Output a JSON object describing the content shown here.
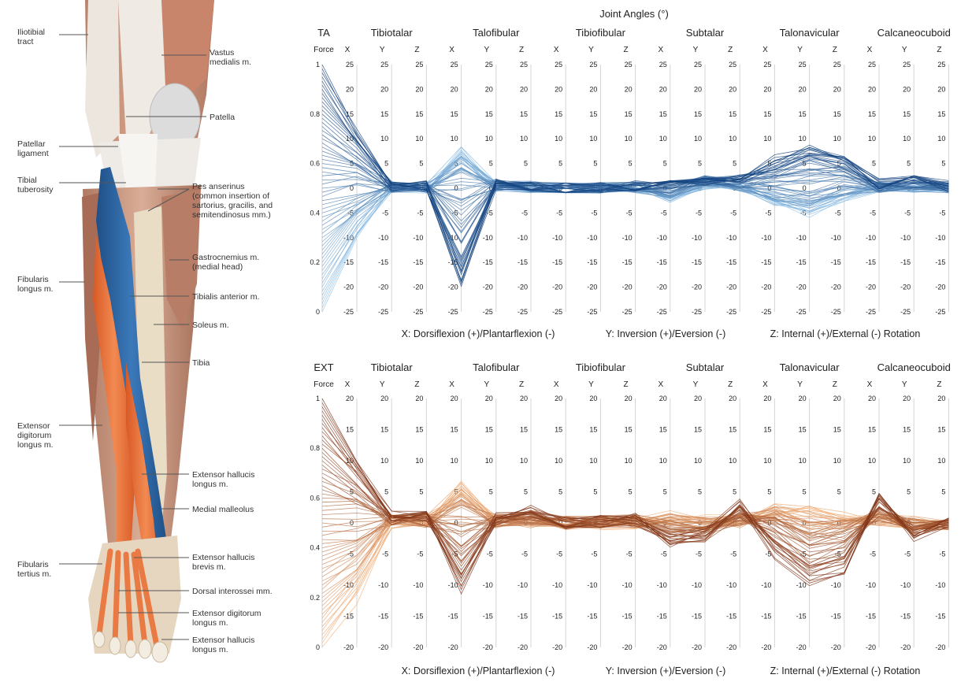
{
  "anatomy": {
    "labels": [
      {
        "lines": [
          "Iliotibial",
          "tract"
        ]
      },
      {
        "lines": [
          "Vastus",
          "medialis m."
        ]
      },
      {
        "lines": [
          "Patella"
        ]
      },
      {
        "lines": [
          "Patellar",
          "ligament"
        ]
      },
      {
        "lines": [
          "Tibial",
          "tuberosity"
        ]
      },
      {
        "lines": [
          "Pes anserinus",
          "(common insertion of",
          "sartorius, gracilis, and",
          "semitendinosus mm.)"
        ]
      },
      {
        "lines": [
          "Gastrocnemius m.",
          "(medial head)"
        ]
      },
      {
        "lines": [
          "Fibularis",
          "longus m."
        ]
      },
      {
        "lines": [
          "Tibialis anterior m."
        ]
      },
      {
        "lines": [
          "Soleus m."
        ]
      },
      {
        "lines": [
          "Tibia"
        ]
      },
      {
        "lines": [
          "Extensor",
          "digitorum",
          "longus m."
        ]
      },
      {
        "lines": [
          "Extensor hallucis",
          "longus m."
        ]
      },
      {
        "lines": [
          "Medial malleolus"
        ]
      },
      {
        "lines": [
          "Extensor hallucis",
          "brevis m."
        ]
      },
      {
        "lines": [
          "Fibularis",
          "tertius m."
        ]
      },
      {
        "lines": [
          "Dorsal interossei mm."
        ]
      },
      {
        "lines": [
          "Extensor digitorum",
          "longus m."
        ]
      },
      {
        "lines": [
          "Extensor hallucis",
          "longus m."
        ]
      }
    ],
    "colors": {
      "tibialis_anterior": "#2f6aa8",
      "extensor": "#e8703a",
      "bone": "#e9ddc6",
      "muscle": "#c98c72"
    }
  },
  "chart_data": {
    "type": "parallel-coordinates",
    "title": "Joint Angles (°)",
    "xlabel_parts": [
      "X: Dorsiflexion (+)/Plantarflexion (-)",
      "Y: Inversion (+)/Eversion (-)",
      "Z: Internal (+)/External (-) Rotation"
    ],
    "force_axis": {
      "label": "Force",
      "ticks": [
        "1",
        "0.8",
        "0.6",
        "0.4",
        "0.2",
        "0"
      ]
    },
    "joints": [
      "Tibiotalar",
      "Talofibular",
      "Tibiofibular",
      "Subtalar",
      "Talonavicular",
      "Calcaneocuboid"
    ],
    "axis_labels": [
      "X",
      "Y",
      "Z"
    ],
    "panels": [
      {
        "name": "TA",
        "range": [
          -25,
          25
        ],
        "ticks": [
          "25",
          "20",
          "15",
          "10",
          "5",
          "0",
          "-5",
          "-10",
          "-15",
          "-20",
          "-25"
        ],
        "color_dark": "#0b3a78",
        "color_light": "#8fc1e8",
        "profiles": [
          {
            "force": 1.0,
            "values": [
              12,
              0.5,
              0.5,
              -19,
              0.5,
              0.3,
              0,
              0.2,
              0.5,
              1,
              1,
              1.5,
              6,
              8,
              6,
              1,
              2,
              0.5
            ]
          },
          {
            "force": 0.8,
            "values": [
              8,
              0.3,
              0.5,
              -15,
              1,
              0.3,
              0,
              0.2,
              0.4,
              0.5,
              1,
              2,
              4,
              7,
              5,
              0.5,
              1.5,
              0.3
            ]
          },
          {
            "force": 0.6,
            "values": [
              4,
              0.2,
              0.3,
              -6,
              1,
              0.5,
              0,
              0.2,
              0.3,
              0,
              2,
              1,
              2,
              3,
              3,
              0.3,
              0.8,
              0.2
            ]
          },
          {
            "force": 0.4,
            "values": [
              -2,
              0.2,
              0.2,
              3,
              0.5,
              0.3,
              0,
              0.1,
              0.2,
              -1,
              1.5,
              0.5,
              -1,
              -2,
              0,
              0,
              0.4,
              0.1
            ]
          },
          {
            "force": 0.2,
            "values": [
              -6,
              0.2,
              0.1,
              6,
              0.3,
              0.2,
              0,
              0.1,
              0.1,
              -1.5,
              1,
              0.3,
              -2,
              -3,
              -1,
              0,
              0.2,
              0
            ]
          },
          {
            "force": 0.0,
            "values": [
              -10,
              0.1,
              0,
              8,
              0.2,
              0.1,
              0,
              0,
              0,
              -2,
              0.5,
              0.1,
              -3,
              -5,
              -2,
              0,
              0,
              0
            ]
          }
        ]
      },
      {
        "name": "EXT",
        "range": [
          -20,
          20
        ],
        "ticks": [
          "20",
          "15",
          "10",
          "5",
          "0",
          "-5",
          "-10",
          "-15",
          "-20"
        ],
        "color_dark": "#7a2e12",
        "color_light": "#f6b27a",
        "profiles": [
          {
            "force": 1.0,
            "values": [
              10,
              1,
              1.5,
              -11,
              1,
              2,
              0,
              0.3,
              0.8,
              -3,
              -2,
              3,
              -5,
              -10,
              -8,
              4,
              -2,
              0.5
            ]
          },
          {
            "force": 0.8,
            "values": [
              7,
              0.8,
              1,
              -7,
              0.5,
              1.5,
              0,
              0.2,
              0.5,
              -2.5,
              -2,
              2,
              -3,
              -7,
              -5,
              3,
              -1.5,
              0.3
            ]
          },
          {
            "force": 0.6,
            "values": [
              3,
              0.5,
              0.5,
              -2,
              0.3,
              1,
              0,
              0.2,
              0.4,
              -1,
              -1,
              1,
              0,
              -3,
              -2,
              1.5,
              -0.5,
              0.1
            ]
          },
          {
            "force": 0.4,
            "values": [
              -3,
              0.3,
              0.3,
              3,
              0.5,
              0.5,
              0,
              0.1,
              0.3,
              0,
              -0.5,
              0.5,
              1,
              -1,
              -0.5,
              1,
              0,
              0
            ]
          },
          {
            "force": 0.2,
            "values": [
              -7,
              0.2,
              0.3,
              5,
              0.3,
              0.3,
              0,
              0.1,
              0.2,
              0.5,
              0,
              0.3,
              2,
              1,
              0,
              0.5,
              0,
              0
            ]
          },
          {
            "force": 0.0,
            "values": [
              -12,
              0.2,
              0.2,
              6,
              0.2,
              0.2,
              0,
              0,
              0.1,
              1,
              0.5,
              0.2,
              2,
              2,
              1,
              0.5,
              0,
              0
            ]
          }
        ]
      }
    ]
  }
}
